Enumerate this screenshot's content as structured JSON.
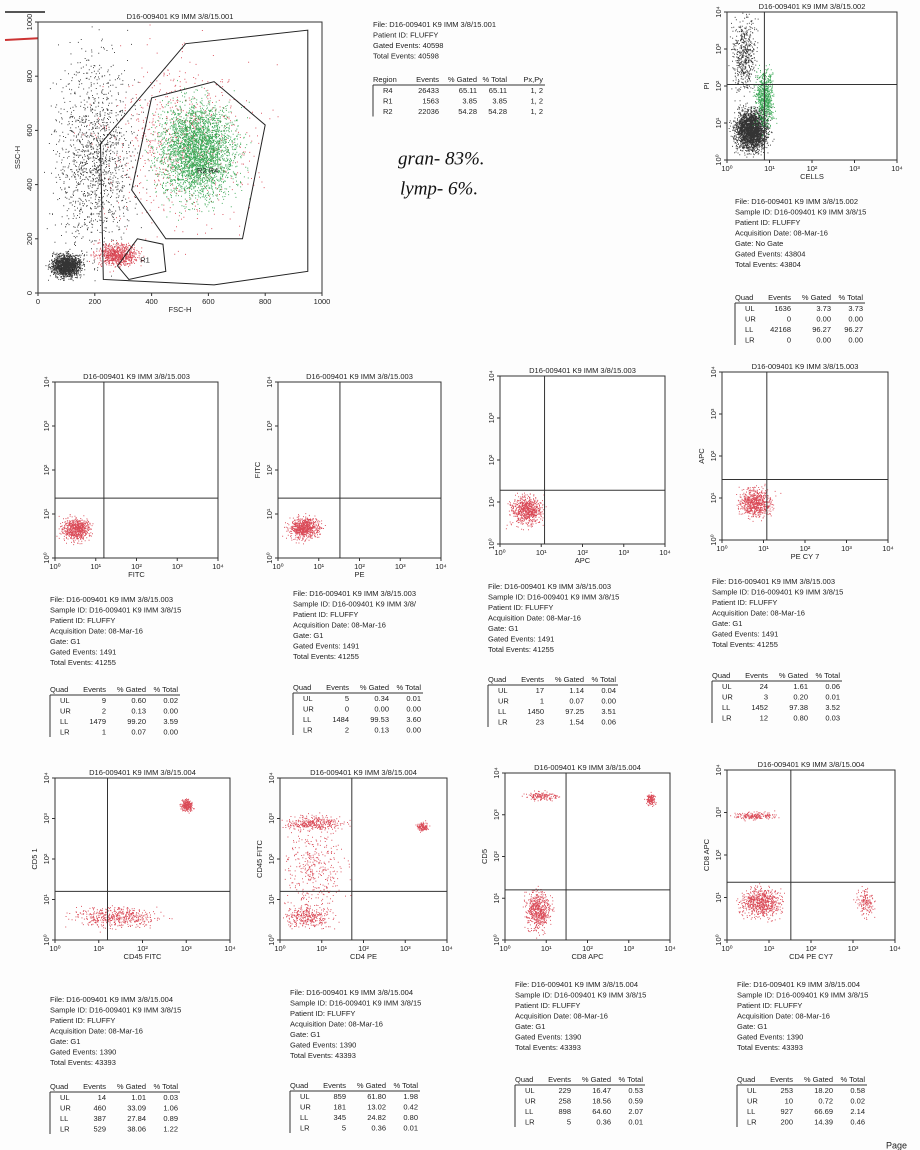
{
  "panels": [
    {
      "plot": {
        "title": "D16-009401 K9 IMM 3/8/15.001",
        "x_label": "FSC-H",
        "y_label": "SSC-H",
        "x_ticks": [
          "0",
          "200",
          "400",
          "600",
          "800",
          "1000"
        ],
        "y_ticks": [
          "0",
          "200",
          "400",
          "600",
          "800",
          "1000"
        ],
        "regions": [
          "R2 R4",
          "R1"
        ]
      },
      "info": [
        "File: D16-009401 K9 IMM 3/8/15.001",
        "Patient ID: FLUFFY",
        "Gated Events: 40598",
        "Total Events: 40598"
      ],
      "table": {
        "header": [
          "Region",
          "Events",
          "% Gated",
          "% Total",
          "Px,Py"
        ],
        "rows": [
          [
            "R4",
            "26433",
            "65.11",
            "65.11",
            "1, 2"
          ],
          [
            "R1",
            "1563",
            "3.85",
            "3.85",
            "1, 2"
          ],
          [
            "R2",
            "22036",
            "54.28",
            "54.28",
            "1, 2"
          ]
        ]
      }
    },
    {
      "plot": {
        "title": "D16-009401 K9 IMM 3/8/15.002",
        "x_label": "CELLS",
        "y_label": "PI",
        "x_ticks": [
          "10⁰",
          "10¹",
          "10²",
          "10³",
          "10⁴"
        ],
        "y_ticks": [
          "10⁰",
          "10¹",
          "10²",
          "10³",
          "10⁴"
        ]
      },
      "info": [
        "File: D16-009401 K9 IMM 3/8/15.002",
        "Sample ID: D16-009401 K9 IMM 3/8/15",
        "Patient ID: FLUFFY",
        "Acquisition Date: 08-Mar-16",
        "Gate: No Gate",
        "Gated Events: 43804",
        "Total Events: 43804"
      ],
      "table": {
        "header": [
          "Quad",
          "Events",
          "% Gated",
          "% Total"
        ],
        "rows": [
          [
            "UL",
            "1636",
            "3.73",
            "3.73"
          ],
          [
            "UR",
            "0",
            "0.00",
            "0.00"
          ],
          [
            "LL",
            "42168",
            "96.27",
            "96.27"
          ],
          [
            "LR",
            "0",
            "0.00",
            "0.00"
          ]
        ]
      }
    },
    {
      "plot": {
        "title": "D16-009401 K9 IMM 3/8/15.003",
        "x_label": "FITC",
        "x_ticks": [
          "10⁰",
          "10¹",
          "10²",
          "10³",
          "10⁴"
        ],
        "y_ticks": [
          "10⁰",
          "10¹",
          "10²",
          "10³",
          "10⁴"
        ]
      },
      "info": [
        "File: D16-009401 K9 IMM 3/8/15.003",
        "Sample ID: D16-009401 K9 IMM 3/8/15",
        "Patient ID: FLUFFY",
        "Acquisition Date: 08-Mar-16",
        "Gate: G1",
        "Gated Events: 1491",
        "Total Events: 41255"
      ],
      "table": {
        "header": [
          "Quad",
          "Events",
          "% Gated",
          "% Total"
        ],
        "rows": [
          [
            "UL",
            "9",
            "0.60",
            "0.02"
          ],
          [
            "UR",
            "2",
            "0.13",
            "0.00"
          ],
          [
            "LL",
            "1479",
            "99.20",
            "3.59"
          ],
          [
            "LR",
            "1",
            "0.07",
            "0.00"
          ]
        ]
      }
    },
    {
      "plot": {
        "title": "D16-009401 K9 IMM 3/8/15.003",
        "x_label": "PE",
        "y_label": "FITC",
        "x_ticks": [
          "10⁰",
          "10¹",
          "10²",
          "10³",
          "10⁴"
        ],
        "y_ticks": [
          "10⁰",
          "10¹",
          "10²",
          "10³",
          "10⁴"
        ]
      },
      "info": [
        "File: D16-009401 K9 IMM 3/8/15.003",
        "Sample ID: D16-009401 K9 IMM 3/8/",
        "Patient ID: FLUFFY",
        "Acquisition Date: 08-Mar-16",
        "Gate: G1",
        "Gated Events: 1491",
        "Total Events: 41255"
      ],
      "table": {
        "header": [
          "Quad",
          "Events",
          "% Gated",
          "% Total"
        ],
        "rows": [
          [
            "UL",
            "5",
            "0.34",
            "0.01"
          ],
          [
            "UR",
            "0",
            "0.00",
            "0.00"
          ],
          [
            "LL",
            "1484",
            "99.53",
            "3.60"
          ],
          [
            "LR",
            "2",
            "0.13",
            "0.00"
          ]
        ]
      }
    },
    {
      "plot": {
        "title": "D16-009401 K9 IMM 3/8/15.003",
        "x_label": "APC",
        "x_ticks": [
          "10⁰",
          "10¹",
          "10²",
          "10³",
          "10⁴"
        ],
        "y_ticks": [
          "10⁰",
          "10¹",
          "10²",
          "10³",
          "10⁴"
        ]
      },
      "info": [
        "File: D16-009401 K9 IMM 3/8/15.003",
        "Sample ID: D16-009401 K9 IMM 3/8/15",
        "Patient ID: FLUFFY",
        "Acquisition Date: 08-Mar-16",
        "Gate: G1",
        "Gated Events: 1491",
        "Total Events: 41255"
      ],
      "table": {
        "header": [
          "Quad",
          "Events",
          "% Gated",
          "% Total"
        ],
        "rows": [
          [
            "UL",
            "17",
            "1.14",
            "0.04"
          ],
          [
            "UR",
            "1",
            "0.07",
            "0.00"
          ],
          [
            "LL",
            "1450",
            "97.25",
            "3.51"
          ],
          [
            "LR",
            "23",
            "1.54",
            "0.06"
          ]
        ]
      }
    },
    {
      "plot": {
        "title": "D16-009401 K9 IMM 3/8/15.003",
        "x_label": "PE CY 7",
        "y_label": "APC",
        "x_ticks": [
          "10⁰",
          "10¹",
          "10²",
          "10³",
          "10⁴"
        ],
        "y_ticks": [
          "10⁰",
          "10¹",
          "10²",
          "10³",
          "10⁴"
        ]
      },
      "info": [
        "File: D16-009401 K9 IMM 3/8/15.003",
        "Sample ID: D16-009401 K9 IMM 3/8/15",
        "Patient ID: FLUFFY",
        "Acquisition Date: 08-Mar-16",
        "Gate: G1",
        "Gated Events: 1491",
        "Total Events: 41255"
      ],
      "table": {
        "header": [
          "Quad",
          "Events",
          "% Gated",
          "% Total"
        ],
        "rows": [
          [
            "UL",
            "24",
            "1.61",
            "0.06"
          ],
          [
            "UR",
            "3",
            "0.20",
            "0.01"
          ],
          [
            "LL",
            "1452",
            "97.38",
            "3.52"
          ],
          [
            "LR",
            "12",
            "0.80",
            "0.03"
          ]
        ]
      }
    },
    {
      "plot": {
        "title": "D16-009401 K9 IMM 3/8/15.004",
        "x_label": "CD45 FITC",
        "y_label": "CD5 1",
        "x_ticks": [
          "10⁰",
          "10¹",
          "10²",
          "10³",
          "10⁴"
        ],
        "y_ticks": [
          "10⁰",
          "10¹",
          "10²",
          "10³",
          "10⁴"
        ]
      },
      "info": [
        "File: D16-009401 K9 IMM 3/8/15.004",
        "Sample ID: D16-009401 K9 IMM 3/8/15",
        "Patient ID: FLUFFY",
        "Acquisition Date: 08-Mar-16",
        "Gate: G1",
        "Gated Events: 1390",
        "Total Events: 43393"
      ],
      "table": {
        "header": [
          "Quad",
          "Events",
          "% Gated",
          "% Total"
        ],
        "rows": [
          [
            "UL",
            "14",
            "1.01",
            "0.03"
          ],
          [
            "UR",
            "460",
            "33.09",
            "1.06"
          ],
          [
            "LL",
            "387",
            "27.84",
            "0.89"
          ],
          [
            "LR",
            "529",
            "38.06",
            "1.22"
          ]
        ]
      }
    },
    {
      "plot": {
        "title": "D16-009401 K9 IMM 3/8/15.004",
        "x_label": "CD4 PE",
        "y_label": "CD45 FITC",
        "x_ticks": [
          "10⁰",
          "10¹",
          "10²",
          "10³",
          "10⁴"
        ],
        "y_ticks": [
          "10⁰",
          "10¹",
          "10²",
          "10³",
          "10⁴"
        ]
      },
      "info": [
        "File: D16-009401 K9 IMM 3/8/15.004",
        "Sample ID: D16-009401 K9 IMM 3/8/15",
        "Patient ID: FLUFFY",
        "Acquisition Date: 08-Mar-16",
        "Gate: G1",
        "Gated Events: 1390",
        "Total Events: 43393"
      ],
      "table": {
        "header": [
          "Quad",
          "Events",
          "% Gated",
          "% Total"
        ],
        "rows": [
          [
            "UL",
            "859",
            "61.80",
            "1.98"
          ],
          [
            "UR",
            "181",
            "13.02",
            "0.42"
          ],
          [
            "LL",
            "345",
            "24.82",
            "0.80"
          ],
          [
            "LR",
            "5",
            "0.36",
            "0.01"
          ]
        ]
      }
    },
    {
      "plot": {
        "title": "D16-009401 K9 IMM 3/8/15.004",
        "x_label": "CD8 APC",
        "y_label": "CD5",
        "x_ticks": [
          "10⁰",
          "10¹",
          "10²",
          "10³",
          "10⁴"
        ],
        "y_ticks": [
          "10⁰",
          "10¹",
          "10²",
          "10³",
          "10⁴"
        ]
      },
      "info": [
        "File: D16-009401 K9 IMM 3/8/15.004",
        "Sample ID: D16-009401 K9 IMM 3/8/15",
        "Patient ID: FLUFFY",
        "Acquisition Date: 08-Mar-16",
        "Gate: G1",
        "Gated Events: 1390",
        "Total Events: 43393"
      ],
      "table": {
        "header": [
          "Quad",
          "Events",
          "% Gated",
          "% Total"
        ],
        "rows": [
          [
            "UL",
            "229",
            "16.47",
            "0.53"
          ],
          [
            "UR",
            "258",
            "18.56",
            "0.59"
          ],
          [
            "LL",
            "898",
            "64.60",
            "2.07"
          ],
          [
            "LR",
            "5",
            "0.36",
            "0.01"
          ]
        ]
      }
    },
    {
      "plot": {
        "title": "D16-009401 K9 IMM 3/8/15.004",
        "x_label": "CD4 PE CY7",
        "y_label": "CD8 APC",
        "x_ticks": [
          "10⁰",
          "10¹",
          "10²",
          "10³",
          "10⁴"
        ],
        "y_ticks": [
          "10⁰",
          "10¹",
          "10²",
          "10³",
          "10⁴"
        ]
      },
      "info": [
        "File: D16-009401 K9 IMM 3/8/15.004",
        "Sample ID: D16-009401 K9 IMM 3/8/15",
        "Patient ID: FLUFFY",
        "Acquisition Date: 08-Mar-16",
        "Gate: G1",
        "Gated Events: 1390",
        "Total Events: 43393"
      ],
      "table": {
        "header": [
          "Quad",
          "Events",
          "% Gated",
          "% Total"
        ],
        "rows": [
          [
            "UL",
            "253",
            "18.20",
            "0.58"
          ],
          [
            "UR",
            "10",
            "0.72",
            "0.02"
          ],
          [
            "LL",
            "927",
            "66.69",
            "2.14"
          ],
          [
            "LR",
            "200",
            "14.39",
            "0.46"
          ]
        ]
      }
    }
  ],
  "annotation": [
    "gran- 83%.",
    "lymp- 6%."
  ],
  "page_label": "Page"
}
